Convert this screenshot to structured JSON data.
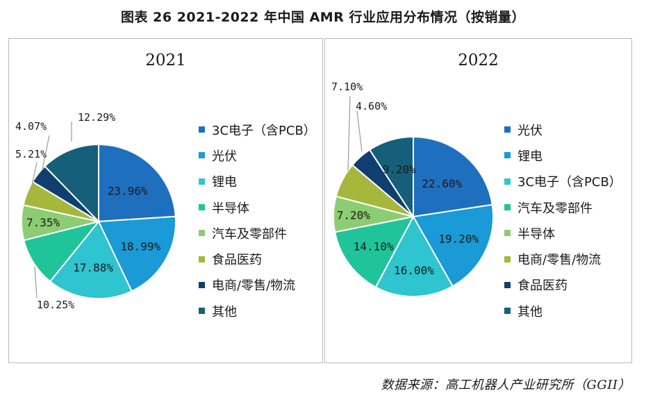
{
  "figure_title": "图表 26   2021-2022 年中国 AMR 行业应用分布情况（按销量）",
  "source": "数据来源：高工机器人产业研究所（GGII）",
  "chart_data": [
    {
      "type": "pie",
      "title": "2021",
      "categories": [
        "3C电子（含PCB）",
        "光伏",
        "锂电",
        "半导体",
        "汽车及零部件",
        "食品医药",
        "电商/零售/物流",
        "其他"
      ],
      "values": [
        23.96,
        18.99,
        17.88,
        10.25,
        7.35,
        5.21,
        4.07,
        12.29
      ],
      "labels": [
        "23.96%",
        "18.99%",
        "17.88%",
        "10.25%",
        "7.35%",
        "5.21%",
        "4.07%",
        "12.29%"
      ],
      "colors": [
        "#1f6fbf",
        "#1a9ad6",
        "#2ec4d0",
        "#20c49a",
        "#8ccc73",
        "#a5b83c",
        "#0f3f6e",
        "#155f7a"
      ],
      "legend_position": "right"
    },
    {
      "type": "pie",
      "title": "2022",
      "categories": [
        "光伏",
        "锂电",
        "3C电子（含PCB）",
        "汽车及零部件",
        "半导体",
        "电商/零售/物流",
        "食品医药",
        "其他"
      ],
      "values": [
        22.6,
        19.2,
        16.0,
        14.1,
        7.2,
        7.1,
        4.6,
        9.2
      ],
      "labels": [
        "22.60%",
        "19.20%",
        "16.00%",
        "14.10%",
        "7.20%",
        "7.10%",
        "4.60%",
        "9.20%"
      ],
      "colors": [
        "#1f6fbf",
        "#1a9ad6",
        "#2ec4d0",
        "#20c49a",
        "#8ccc73",
        "#a5b83c",
        "#0f3f6e",
        "#155f7a"
      ],
      "legend_position": "right"
    }
  ]
}
